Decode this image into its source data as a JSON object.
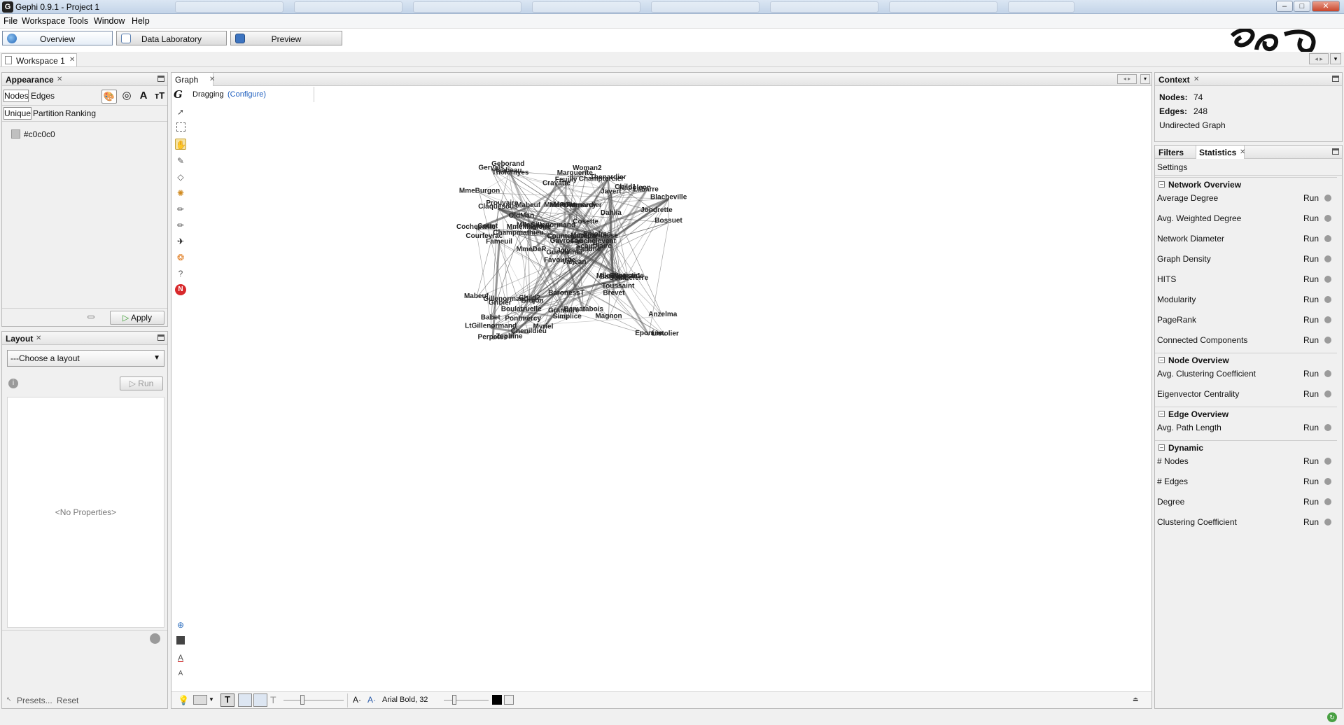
{
  "window": {
    "title": "Gephi 0.9.1 - Project 1",
    "app_icon_glyph": "G",
    "controls": {
      "minimize": "–",
      "maximize": "□",
      "close": "✕"
    }
  },
  "menubar": {
    "items": [
      "File",
      "Workspace",
      "Tools",
      "Window",
      "Help"
    ]
  },
  "modes": [
    {
      "label": "Overview",
      "icon": "globe-icon",
      "active": true
    },
    {
      "label": "Data Laboratory",
      "icon": "table-icon",
      "active": false
    },
    {
      "label": "Preview",
      "icon": "monitor-icon",
      "active": false
    }
  ],
  "workspace_tab": {
    "label": "Workspace 1"
  },
  "appearance": {
    "title": "Appearance",
    "tabs": [
      "Nodes",
      "Edges"
    ],
    "subtabs": [
      "Unique",
      "Partition",
      "Ranking"
    ],
    "color_value": "#c0c0c0",
    "apply_label": "Apply"
  },
  "layout": {
    "title": "Layout",
    "select_value": "---Choose a layout",
    "run_label": "Run",
    "no_properties": "<No Properties>",
    "presets_label": "Presets...",
    "reset_label": "Reset"
  },
  "graph": {
    "title": "Graph",
    "mode_label": "Dragging",
    "configure_label": "(Configure)",
    "font_label": "Arial Bold, 32",
    "edge_color": "#555555",
    "nodes": [
      "Valjean",
      "Claquesous",
      "Gueulemer",
      "Babet",
      "Montparnasse",
      "Brujon",
      "Thenardier",
      "MmeThenardier",
      "Javert",
      "Fantine",
      "Tholomyes",
      "Listolier",
      "Fameuil",
      "Blacheville",
      "Favourite",
      "Dahlia",
      "Zephine",
      "Marius",
      "Cosette",
      "Gillenormand",
      "MlleGillenormand",
      "LtGillenormand",
      "Pontmercy",
      "MmePontmercy",
      "Enjolras",
      "Combeferre",
      "Prouvaire",
      "Feuilly",
      "Courfeyrac",
      "Bahorel",
      "Bossuet",
      "Joly",
      "Grantaire",
      "Gavroche",
      "Mabeuf",
      "Child1",
      "Child2",
      "Eponine",
      "Anzelma",
      "Woman1",
      "Woman2",
      "Judge",
      "Champmathieu",
      "Brevet",
      "Chenildieu",
      "Cochepaille",
      "Fauchelevent",
      "Perpetue",
      "Simplice",
      "Scaufflaire",
      "Gribier",
      "Jondrette",
      "MmeBurgon",
      "Toussaint",
      "Magnon",
      "Boulatruelle",
      "Isabeau",
      "Gervais",
      "Bamatabois",
      "Labarre",
      "Marguerite",
      "MmeDeR",
      "Count",
      "OldMan",
      "Napoleon",
      "Geborand",
      "Champtercier",
      "Cravatte",
      "CountessDeLo",
      "Mabeuf",
      "BaronessT",
      "Myriel",
      "MlleBaptistine",
      "MmeMagloire"
    ]
  },
  "context": {
    "title": "Context",
    "nodes_label": "Nodes:",
    "nodes_value": "74",
    "edges_label": "Edges:",
    "edges_value": "248",
    "graph_type": "Undirected Graph"
  },
  "statistics": {
    "tabs": [
      "Filters",
      "Statistics"
    ],
    "settings_label": "Settings",
    "run_label": "Run",
    "sections": [
      {
        "title": "Network Overview",
        "items": [
          "Average Degree",
          "Avg. Weighted Degree",
          "Network Diameter",
          "Graph Density",
          "HITS",
          "Modularity",
          "PageRank",
          "Connected Components"
        ]
      },
      {
        "title": "Node Overview",
        "items": [
          "Avg. Clustering Coefficient",
          "Eigenvector Centrality"
        ]
      },
      {
        "title": "Edge Overview",
        "items": [
          "Avg. Path Length"
        ]
      },
      {
        "title": "Dynamic",
        "items": [
          "# Nodes",
          "# Edges",
          "Degree",
          "Clustering Coefficient"
        ]
      }
    ]
  }
}
